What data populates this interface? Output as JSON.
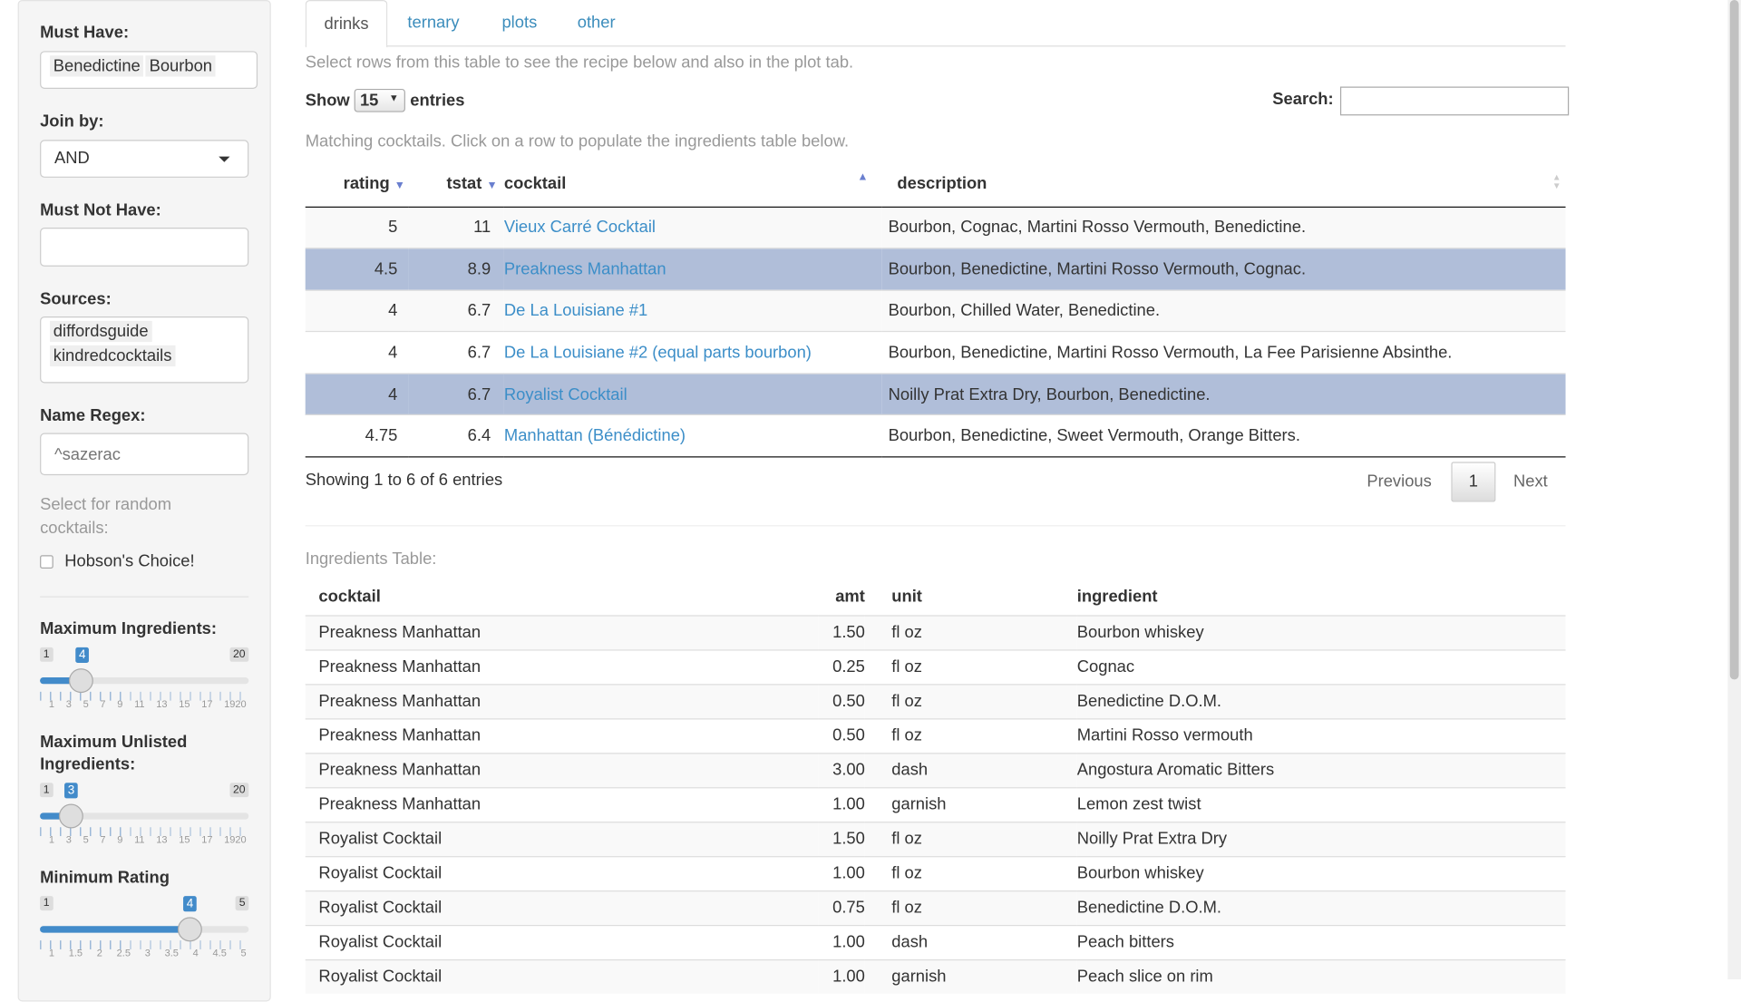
{
  "sidebar": {
    "must_have_label": "Must Have:",
    "must_have": [
      "Benedictine",
      "Bourbon"
    ],
    "join_label": "Join by:",
    "join_value": "AND",
    "must_not_label": "Must Not Have:",
    "sources_label": "Sources:",
    "sources": [
      "diffordsguide",
      "kindredcocktails"
    ],
    "regex_label": "Name Regex:",
    "regex_placeholder": "^sazerac",
    "random_label": "Select for random cocktails:",
    "hobson_label": "Hobson's Choice!",
    "sliders": [
      {
        "label": "Maximum Ingredients:",
        "min": "1",
        "max": "20",
        "value": "4",
        "ticks": [
          "1",
          "3",
          "5",
          "7",
          "9",
          "11",
          "13",
          "15",
          "17",
          "1920"
        ]
      },
      {
        "label": "Maximum Unlisted Ingredients:",
        "min": "1",
        "max": "20",
        "value": "3",
        "ticks": [
          "1",
          "3",
          "5",
          "7",
          "9",
          "11",
          "13",
          "15",
          "17",
          "1920"
        ]
      },
      {
        "label": "Minimum Rating",
        "min": "1",
        "max": "5",
        "value": "4",
        "ticks": [
          "1",
          "1.5",
          "2",
          "2.5",
          "3",
          "3.5",
          "4",
          "4.5",
          "5"
        ]
      }
    ]
  },
  "tabs": [
    "drinks",
    "ternary",
    "plots",
    "other"
  ],
  "intro": "Select rows from this table to see the recipe below and also in the plot tab.",
  "show": "Show",
  "entries_value": "15",
  "entries": "entries",
  "search_label": "Search:",
  "matching": "Matching cocktails. Click on a row to populate the ingredients table below.",
  "drinks_headers": [
    "rating",
    "tstat",
    "cocktail",
    "description"
  ],
  "drinks": [
    {
      "rating": "5",
      "tstat": "11",
      "cocktail": "Vieux Carré Cocktail",
      "description": "Bourbon, Cognac, Martini Rosso Vermouth, Benedictine.",
      "selected": false
    },
    {
      "rating": "4.5",
      "tstat": "8.9",
      "cocktail": "Preakness Manhattan",
      "description": "Bourbon, Benedictine, Martini Rosso Vermouth, Cognac.",
      "selected": true
    },
    {
      "rating": "4",
      "tstat": "6.7",
      "cocktail": "De La Louisiane #1",
      "description": "Bourbon, Chilled Water, Benedictine.",
      "selected": false
    },
    {
      "rating": "4",
      "tstat": "6.7",
      "cocktail": "De La Louisiane #2 (equal parts bourbon)",
      "description": "Bourbon, Benedictine, Martini Rosso Vermouth, La Fee Parisienne Absinthe.",
      "selected": false
    },
    {
      "rating": "4",
      "tstat": "6.7",
      "cocktail": "Royalist Cocktail",
      "description": "Noilly Prat Extra Dry, Bourbon, Benedictine.",
      "selected": true
    },
    {
      "rating": "4.75",
      "tstat": "6.4",
      "cocktail": "Manhattan (Bénédictine)",
      "description": "Bourbon, Benedictine, Sweet Vermouth, Orange Bitters.",
      "selected": false
    }
  ],
  "info": "Showing 1 to 6 of 6 entries",
  "prev": "Previous",
  "page": "1",
  "next": "Next",
  "ing_title": "Ingredients Table:",
  "ing_headers": [
    "cocktail",
    "amt",
    "unit",
    "ingredient"
  ],
  "ingredients": [
    [
      "Preakness Manhattan",
      "1.50",
      "fl oz",
      "Bourbon whiskey"
    ],
    [
      "Preakness Manhattan",
      "0.25",
      "fl oz",
      "Cognac"
    ],
    [
      "Preakness Manhattan",
      "0.50",
      "fl oz",
      "Benedictine D.O.M."
    ],
    [
      "Preakness Manhattan",
      "0.50",
      "fl oz",
      "Martini Rosso vermouth"
    ],
    [
      "Preakness Manhattan",
      "3.00",
      "dash",
      "Angostura Aromatic Bitters"
    ],
    [
      "Preakness Manhattan",
      "1.00",
      "garnish",
      "Lemon zest twist"
    ],
    [
      "Royalist Cocktail",
      "1.50",
      "fl oz",
      "Noilly Prat Extra Dry"
    ],
    [
      "Royalist Cocktail",
      "1.00",
      "fl oz",
      "Bourbon whiskey"
    ],
    [
      "Royalist Cocktail",
      "0.75",
      "fl oz",
      "Benedictine D.O.M."
    ],
    [
      "Royalist Cocktail",
      "1.00",
      "dash",
      "Peach bitters"
    ],
    [
      "Royalist Cocktail",
      "1.00",
      "garnish",
      "Peach slice on rim"
    ]
  ],
  "colors": {
    "accent": "#428bca",
    "link": "#3c8ec8",
    "selected_row": "#b0bed9"
  }
}
